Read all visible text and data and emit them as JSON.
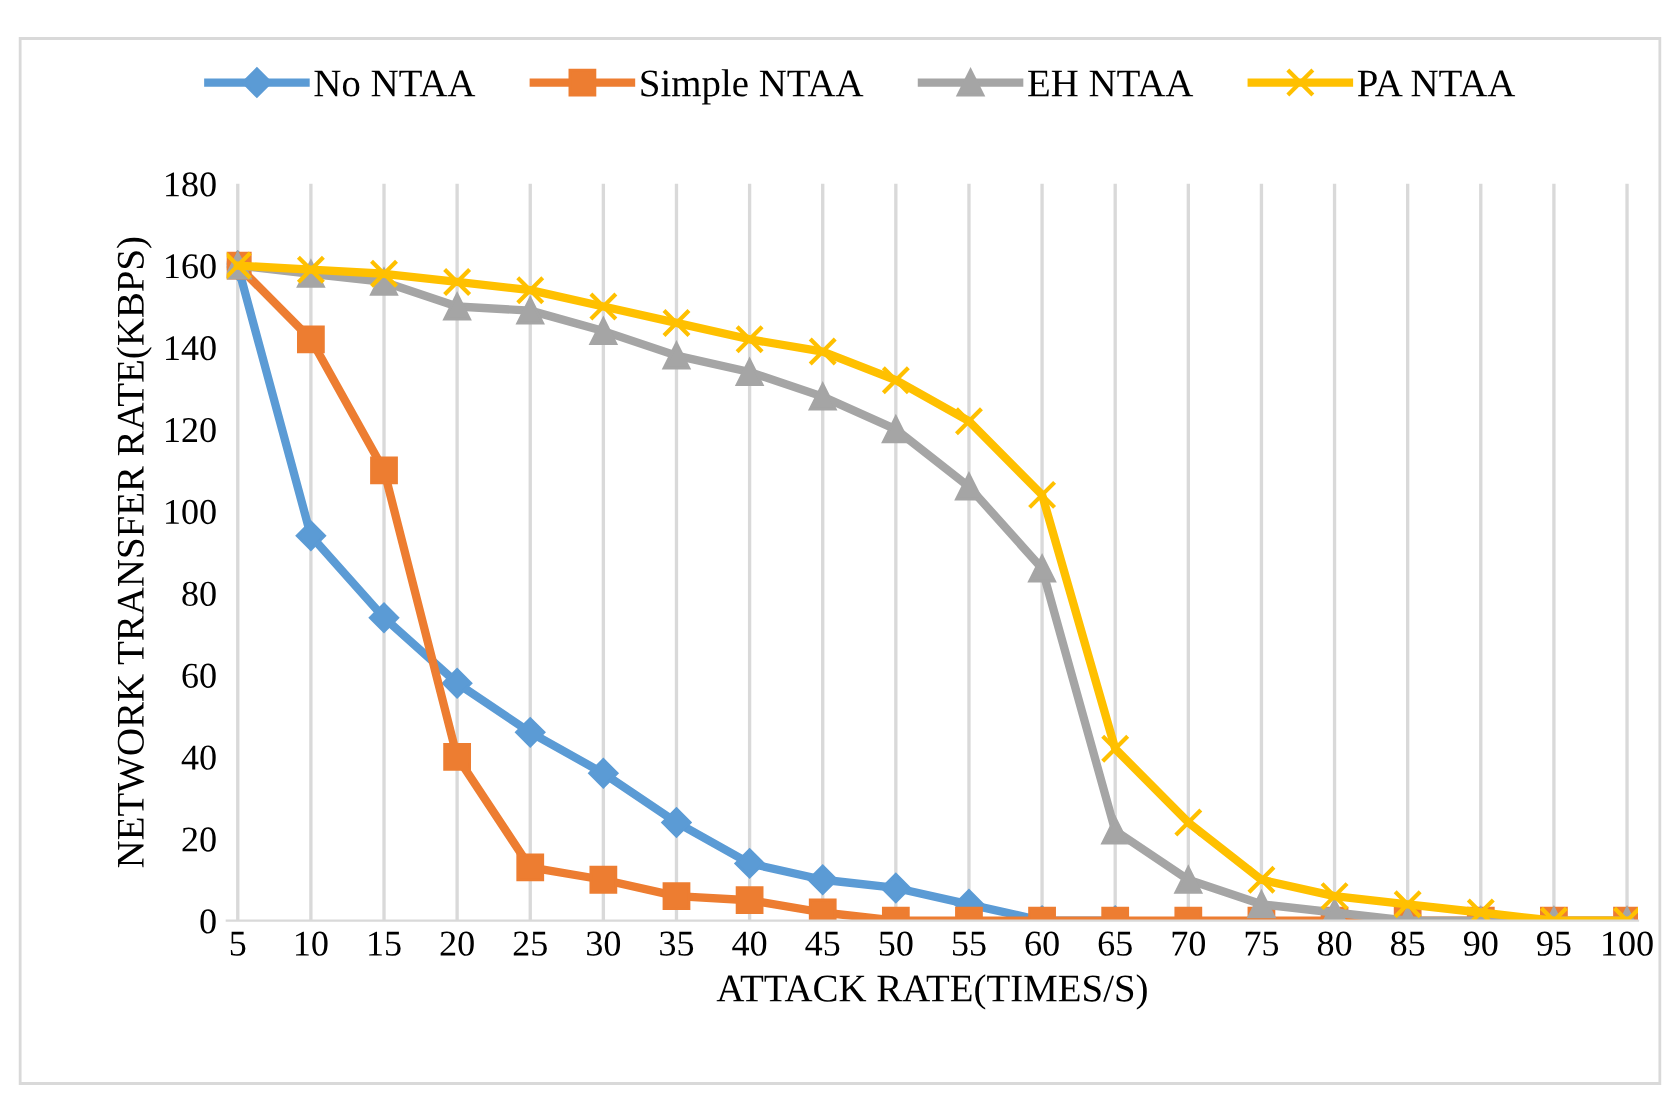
{
  "chart_data": {
    "type": "line",
    "xlabel": "ATTACK RATE(TIMES/S)",
    "ylabel": "NETWORK TRANSFER RATE(KBPS)",
    "categories": [
      "5",
      "10",
      "15",
      "20",
      "25",
      "30",
      "35",
      "40",
      "45",
      "50",
      "55",
      "60",
      "65",
      "70",
      "75",
      "80",
      "85",
      "90",
      "95",
      "100"
    ],
    "series": [
      {
        "name": "No NTAA",
        "color": "#5b9bd5",
        "marker": "diamond",
        "values": [
          160,
          94,
          74,
          58,
          46,
          36,
          24,
          14,
          10,
          8,
          4,
          0,
          0,
          null,
          null,
          null,
          null,
          null,
          null,
          null
        ]
      },
      {
        "name": "Simple NTAA",
        "color": "#ed7d31",
        "marker": "square",
        "values": [
          160,
          142,
          110,
          40,
          13,
          10,
          6,
          5,
          2,
          0,
          0,
          0,
          0,
          0,
          0,
          0,
          0,
          0,
          0,
          0
        ]
      },
      {
        "name": "EH NTAA",
        "color": "#a5a5a5",
        "marker": "triangle",
        "values": [
          160,
          158,
          156,
          150,
          149,
          144,
          138,
          134,
          128,
          120,
          106,
          86,
          22,
          10,
          4,
          2,
          0,
          0,
          0,
          0
        ]
      },
      {
        "name": "PA NTAA",
        "color": "#ffc000",
        "marker": "cross",
        "values": [
          160,
          159,
          158,
          156,
          154,
          150,
          146,
          142,
          139,
          132,
          122,
          104,
          42,
          24,
          10,
          6,
          4,
          2,
          0,
          0
        ]
      }
    ],
    "ylim": [
      0,
      180
    ],
    "yticks": [
      0,
      20,
      40,
      60,
      80,
      100,
      120,
      140,
      160,
      180
    ],
    "grid": "x",
    "legend": "top"
  }
}
